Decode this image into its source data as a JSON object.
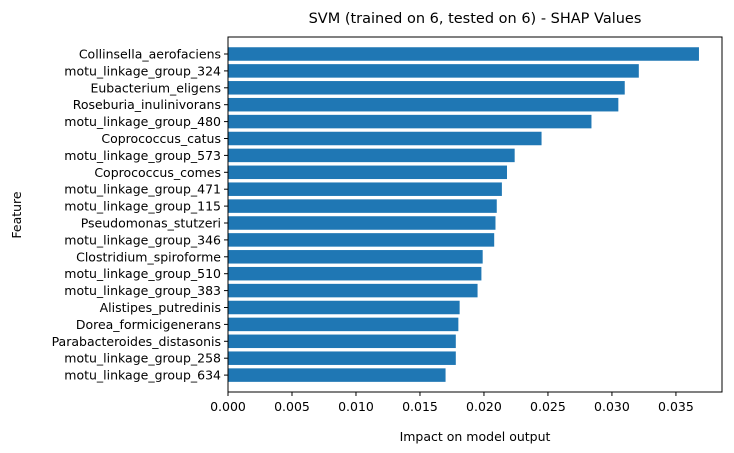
{
  "chart_data": {
    "type": "bar",
    "orientation": "horizontal",
    "title": "SVM (trained on 6, tested on 6) -  SHAP Values",
    "xlabel": "Impact on model output",
    "ylabel": "Feature",
    "xlim": [
      0,
      0.0386
    ],
    "xticks": [
      "0.000",
      "0.005",
      "0.010",
      "0.015",
      "0.020",
      "0.025",
      "0.030",
      "0.035"
    ],
    "bar_color": "#1f77b4",
    "grid": false,
    "categories": [
      "Collinsella_aerofaciens",
      "motu_linkage_group_324",
      "Eubacterium_eligens",
      "Roseburia_inulinivorans",
      "motu_linkage_group_480",
      "Coprococcus_catus",
      "motu_linkage_group_573",
      "Coprococcus_comes",
      "motu_linkage_group_471",
      "motu_linkage_group_115",
      "Pseudomonas_stutzeri",
      "motu_linkage_group_346",
      "Clostridium_spiroforme",
      "motu_linkage_group_510",
      "motu_linkage_group_383",
      "Alistipes_putredinis",
      "Dorea_formicigenerans",
      "Parabacteroides_distasonis",
      "motu_linkage_group_258",
      "motu_linkage_group_634"
    ],
    "values": [
      0.0368,
      0.0321,
      0.031,
      0.0305,
      0.0284,
      0.0245,
      0.0224,
      0.0218,
      0.0214,
      0.021,
      0.0209,
      0.0208,
      0.0199,
      0.0198,
      0.0195,
      0.0181,
      0.018,
      0.0178,
      0.0178,
      0.017
    ]
  }
}
